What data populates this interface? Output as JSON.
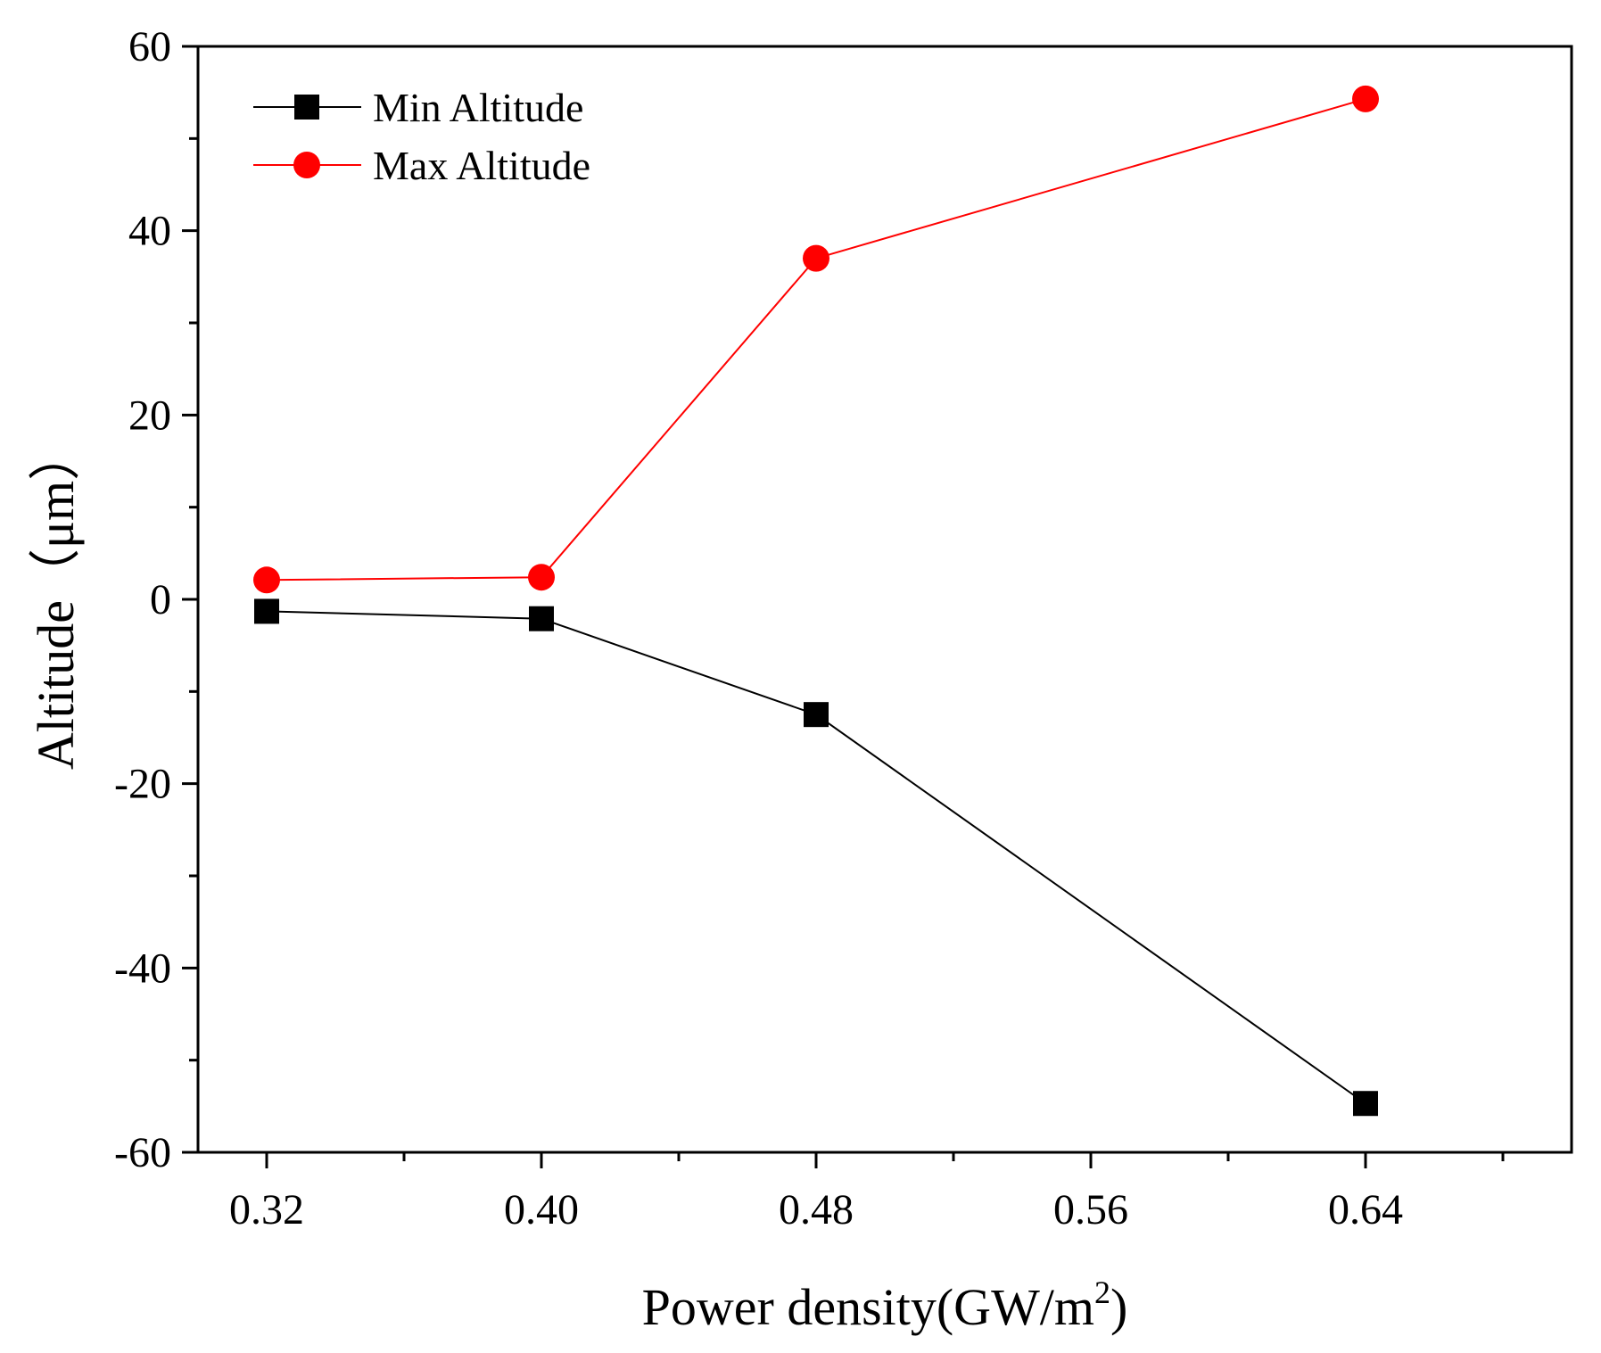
{
  "chart_data": {
    "type": "line",
    "title": "",
    "xlabel": "Power density(GW/m",
    "xlabel_superscript": "2",
    "xlabel_suffix": ")",
    "ylabel": "Altitude（μm）",
    "xlim": [
      0.3,
      0.7
    ],
    "ylim": [
      -60,
      60
    ],
    "x_ticks": [
      0.32,
      0.4,
      0.48,
      0.56,
      0.64
    ],
    "x_tick_labels": [
      "0.32",
      "0.40",
      "0.48",
      "0.56",
      "0.64"
    ],
    "y_ticks": [
      -60,
      -40,
      -20,
      0,
      20,
      40,
      60
    ],
    "y_tick_labels": [
      "-60",
      "-40",
      "-20",
      "0",
      "20",
      "40",
      "60"
    ],
    "grid": false,
    "legend_position": "top-left",
    "series": [
      {
        "name": "Min Altitude",
        "color": "#000000",
        "marker": "square",
        "x": [
          0.32,
          0.4,
          0.48,
          0.64
        ],
        "values": [
          -1.3,
          -2.1,
          -12.5,
          -54.7
        ]
      },
      {
        "name": "Max Altitude",
        "color": "#ff0000",
        "marker": "circle",
        "x": [
          0.32,
          0.4,
          0.48,
          0.64
        ],
        "values": [
          2.1,
          2.4,
          37.0,
          54.3
        ]
      }
    ]
  }
}
